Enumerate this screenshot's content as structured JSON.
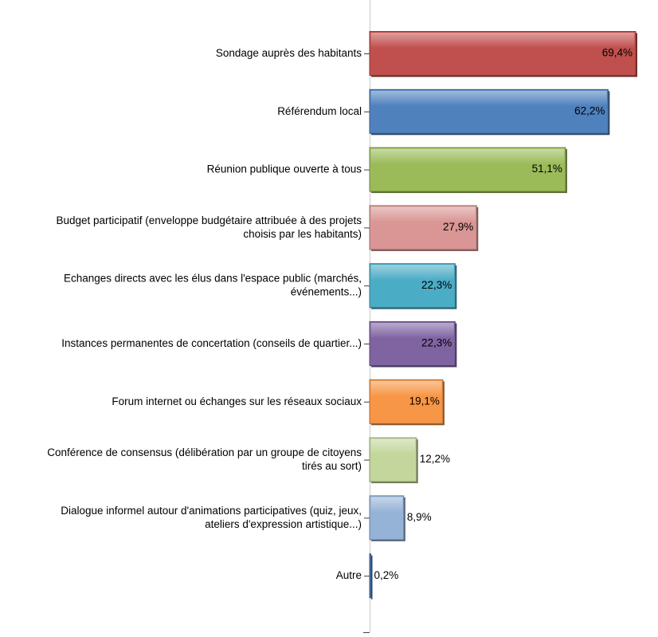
{
  "chart_data": {
    "type": "bar",
    "orientation": "horizontal",
    "title": "",
    "xlabel": "",
    "ylabel": "",
    "xlim": [
      0,
      70
    ],
    "grid": false,
    "legend": "none",
    "categories": [
      [
        "Sondage auprès des habitants"
      ],
      [
        "Référendum local"
      ],
      [
        "Réunion publique ouverte à tous"
      ],
      [
        "Budget participatif (enveloppe budgétaire attribuée à des projets",
        "choisis par les habitants)"
      ],
      [
        "Echanges directs avec les élus dans l'espace public (marchés,",
        "événements...)"
      ],
      [
        "Instances permanentes de concertation (conseils de quartier...)"
      ],
      [
        "Forum internet ou échanges sur les réseaux sociaux"
      ],
      [
        "Conférence de consensus (délibération par un groupe de citoyens",
        "tirés au sort)"
      ],
      [
        "Dialogue informel autour d'animations participatives (quiz, jeux,",
        "ateliers d'expression artistique...)"
      ],
      [
        "Autre"
      ]
    ],
    "values": [
      69.4,
      62.2,
      51.1,
      27.9,
      22.3,
      22.3,
      19.1,
      12.2,
      8.9,
      0.2
    ],
    "value_labels": [
      "69,4%",
      "62,2%",
      "51,1%",
      "27,9%",
      "22,3%",
      "22,3%",
      "19,1%",
      "12,2%",
      "8,9%",
      "0,2%"
    ],
    "colors": [
      "#C0504D",
      "#4F81BD",
      "#9BBB59",
      "#D99694",
      "#4BACC6",
      "#8064A2",
      "#F79646",
      "#C3D69B",
      "#95B3D7",
      "#4F81BD"
    ]
  }
}
